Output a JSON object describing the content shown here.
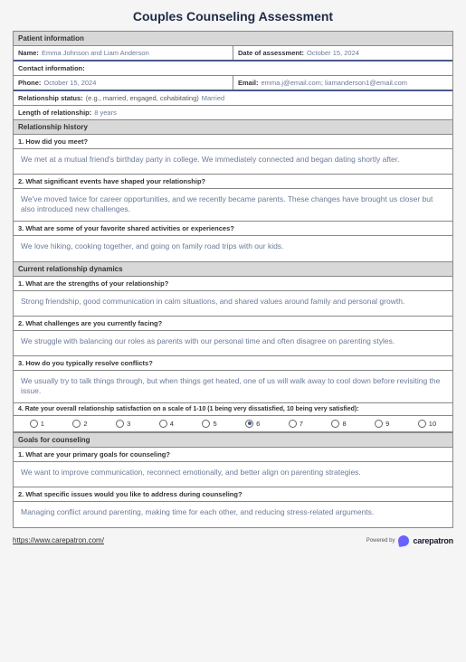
{
  "title": "Couples Counseling Assessment",
  "patient": {
    "section": "Patient information",
    "name_label": "Name:",
    "name": "Emma Johnson and Liam Anderson",
    "date_label": "Date of assessment:",
    "date": "October 15, 2024",
    "contact_label": "Contact information:",
    "phone_label": "Phone:",
    "phone": "October 15, 2024",
    "email_label": "Email:",
    "email": "emma.j@email.com; liamanderson1@email.com",
    "rel_status_label": "Relationship status:",
    "rel_status_hint": "(e.g., married, engaged, cohabitating)",
    "rel_status": "Married",
    "length_label": "Length of relationship:",
    "length": "8 years"
  },
  "history": {
    "section": "Relationship history",
    "q1": "1. How did you meet?",
    "a1": "We met at a mutual friend's birthday party in college. We immediately connected and began dating shortly after.",
    "q2": "2. What significant events have shaped your relationship?",
    "a2": "We've moved twice for career opportunities, and we recently became parents. These changes have brought us closer but also introduced new challenges.",
    "q3": "3. What are some of your favorite shared activities or experiences?",
    "a3": "We love hiking, cooking together, and going on family road trips with our kids."
  },
  "dynamics": {
    "section": "Current relationship dynamics",
    "q1": "1. What are the strengths of your relationship?",
    "a1": "Strong friendship, good communication in calm situations, and shared values around family and personal growth.",
    "q2": "2. What challenges are you currently facing?",
    "a2": "We struggle with balancing our roles as parents with our personal time and often disagree on parenting styles.",
    "q3": "3. How do you typically resolve conflicts?",
    "a3": "We usually try to talk things through, but when things get heated, one of us will walk away to cool down before revisiting the issue.",
    "q4": "4. Rate your overall relationship satisfaction on a scale of 1-10 (1 being very dissatisfied, 10 being very satisfied):",
    "scale": [
      1,
      2,
      3,
      4,
      5,
      6,
      7,
      8,
      9,
      10
    ],
    "selected": 6
  },
  "goals": {
    "section": "Goals for counseling",
    "q1": "1. What are your primary goals for counseling?",
    "a1": "We want to improve communication, reconnect emotionally, and better align on parenting strategies.",
    "q2": "2. What specific issues would you like to address during counseling?",
    "a2": "Managing conflict around parenting, making time for each other, and reducing stress-related arguments."
  },
  "footer": {
    "url": "https://www.carepatron.com/",
    "powered_by": "Powered by",
    "brand": "carepatron"
  }
}
